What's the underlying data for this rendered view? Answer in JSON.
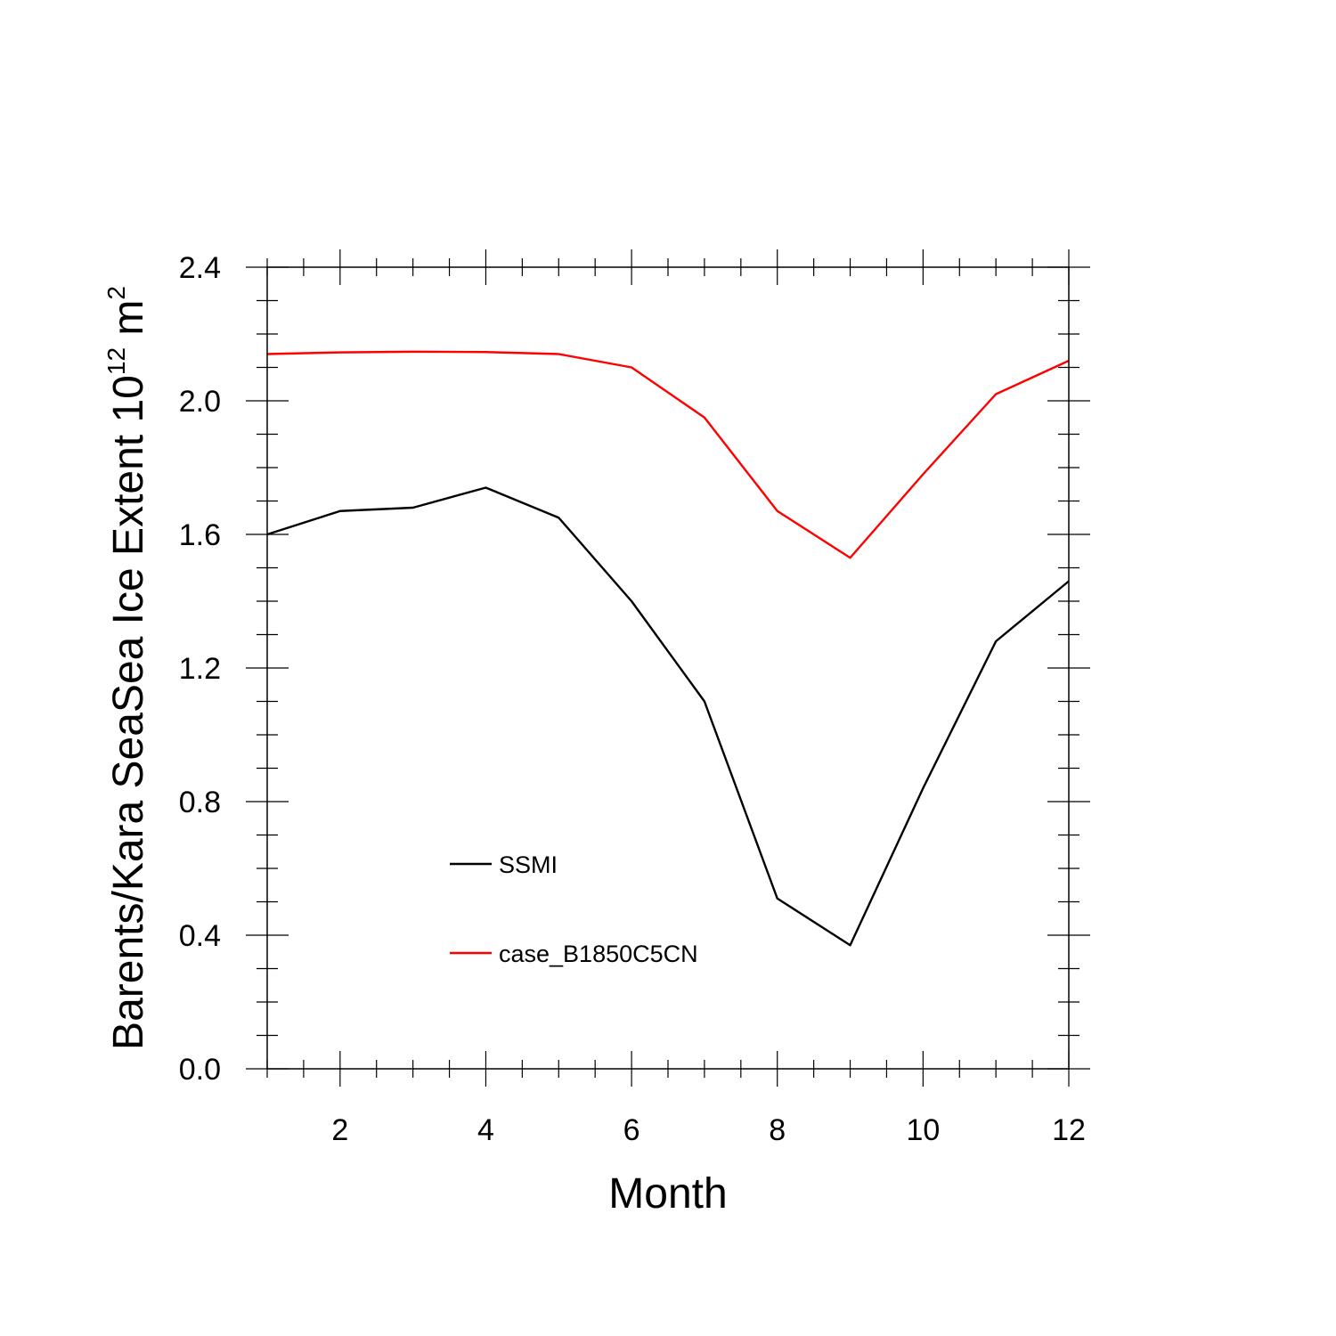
{
  "chart_data": {
    "type": "line",
    "title": "",
    "xlabel": "Month",
    "ylabel": {
      "main": "Barents/Kara SeaSea Ice Extent 10",
      "superscript": "12",
      "unit": " m",
      "unit_superscript": "2"
    },
    "xlim": [
      1,
      12
    ],
    "ylim": [
      0.0,
      2.4
    ],
    "x_ticks": [
      2,
      4,
      6,
      8,
      10,
      12
    ],
    "x_tick_labels": [
      "2",
      "4",
      "6",
      "8",
      "10",
      "12"
    ],
    "y_ticks": [
      0.0,
      0.4,
      0.8,
      1.2,
      1.6,
      2.0,
      2.4
    ],
    "y_tick_labels": [
      "0.0",
      "0.4",
      "0.8",
      "1.2",
      "1.6",
      "2.0",
      "2.4"
    ],
    "grid": false,
    "legend_position": "lower-center",
    "x": [
      1,
      2,
      3,
      4,
      5,
      6,
      7,
      8,
      9,
      10,
      11,
      12
    ],
    "series": [
      {
        "name": "SSMI",
        "color": "#000000",
        "values": [
          1.6,
          1.67,
          1.68,
          1.74,
          1.65,
          1.4,
          1.1,
          0.51,
          0.37,
          0.84,
          1.28,
          1.46
        ]
      },
      {
        "name": "case_B1850C5CN",
        "color": "#ff0000",
        "values": [
          2.14,
          2.145,
          2.147,
          2.146,
          2.14,
          2.1,
          1.95,
          1.67,
          1.53,
          1.78,
          2.02,
          2.12
        ]
      }
    ]
  }
}
